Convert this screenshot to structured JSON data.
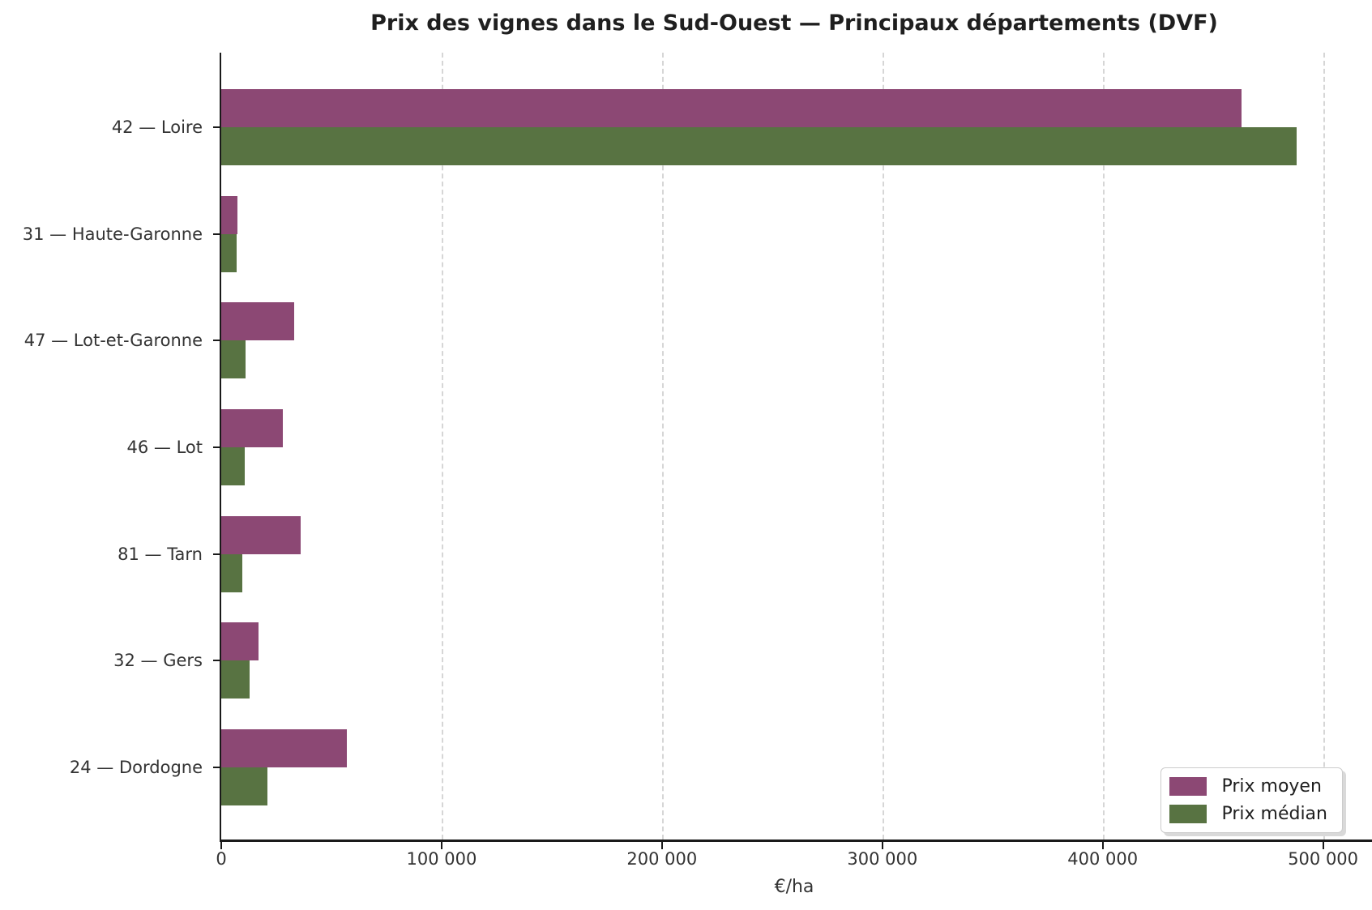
{
  "chart_data": {
    "type": "bar",
    "orientation": "horizontal",
    "title": "Prix des vignes dans le Sud-Ouest — Principaux départements (DVF)",
    "xlabel": "€/ha",
    "categories": [
      "42 — Loire",
      "31 — Haute-Garonne",
      "47 — Lot-et-Garonne",
      "46 — Lot",
      "81 — Tarn",
      "32 — Gers",
      "24 — Dordogne"
    ],
    "series": [
      {
        "name": "Prix moyen",
        "color": "#8C4874",
        "values": [
          463000,
          7500,
          33000,
          28000,
          36000,
          17000,
          57000
        ]
      },
      {
        "name": "Prix médian",
        "color": "#587342",
        "values": [
          488000,
          7000,
          11000,
          10500,
          9500,
          13000,
          21000
        ]
      }
    ],
    "xlim": [
      0,
      520000
    ],
    "x_ticks": {
      "values": [
        0,
        100000,
        200000,
        300000,
        400000,
        500000
      ],
      "labels": [
        "0",
        "100 000",
        "200 000",
        "300 000",
        "400 000",
        "500 000"
      ]
    },
    "grid": "vertical dashed gridlines at x ticks",
    "legend": {
      "position": "lower-right",
      "entries": [
        "Prix moyen",
        "Prix médian"
      ]
    },
    "colors": {
      "spine": "#1a1a1a",
      "grid": "#d6d6d6",
      "tick_label": "#333333",
      "title": "#1f1f1f",
      "background": "#ffffff"
    }
  }
}
